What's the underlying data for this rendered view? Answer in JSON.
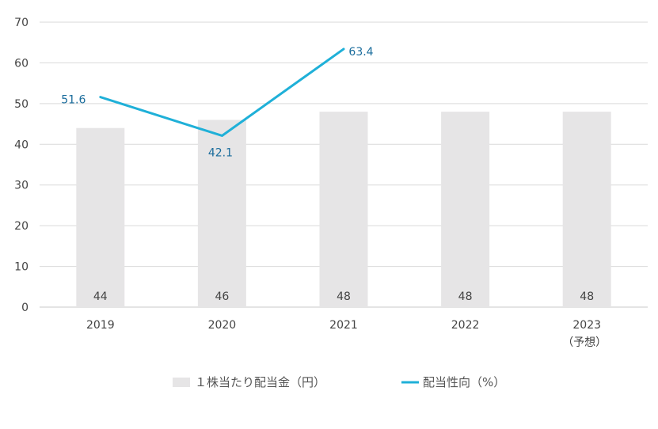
{
  "chart_data": {
    "type": "bar+line",
    "categories": [
      "2019",
      "2020",
      "2021",
      "2022",
      "2023"
    ],
    "category_sublabels": [
      "",
      "",
      "",
      "",
      "（予想）"
    ],
    "ylim": [
      0,
      70
    ],
    "yticks": [
      0,
      10,
      20,
      30,
      40,
      50,
      60,
      70
    ],
    "grid": true,
    "legend_position": "bottom",
    "series": [
      {
        "name": "１株当たり配当金（円）",
        "type": "bar",
        "color": "#e6e5e6",
        "values": [
          44,
          46,
          48,
          48,
          48
        ],
        "labels": [
          "44",
          "46",
          "48",
          "48",
          "48"
        ]
      },
      {
        "name": "配当性向（%）",
        "type": "line",
        "color": "#1fb0d8",
        "label_color": "#1a6c9c",
        "values": [
          51.6,
          42.1,
          63.4,
          null,
          null
        ],
        "labels": [
          "51.6",
          "42.1",
          "63.4",
          "",
          ""
        ]
      }
    ]
  }
}
